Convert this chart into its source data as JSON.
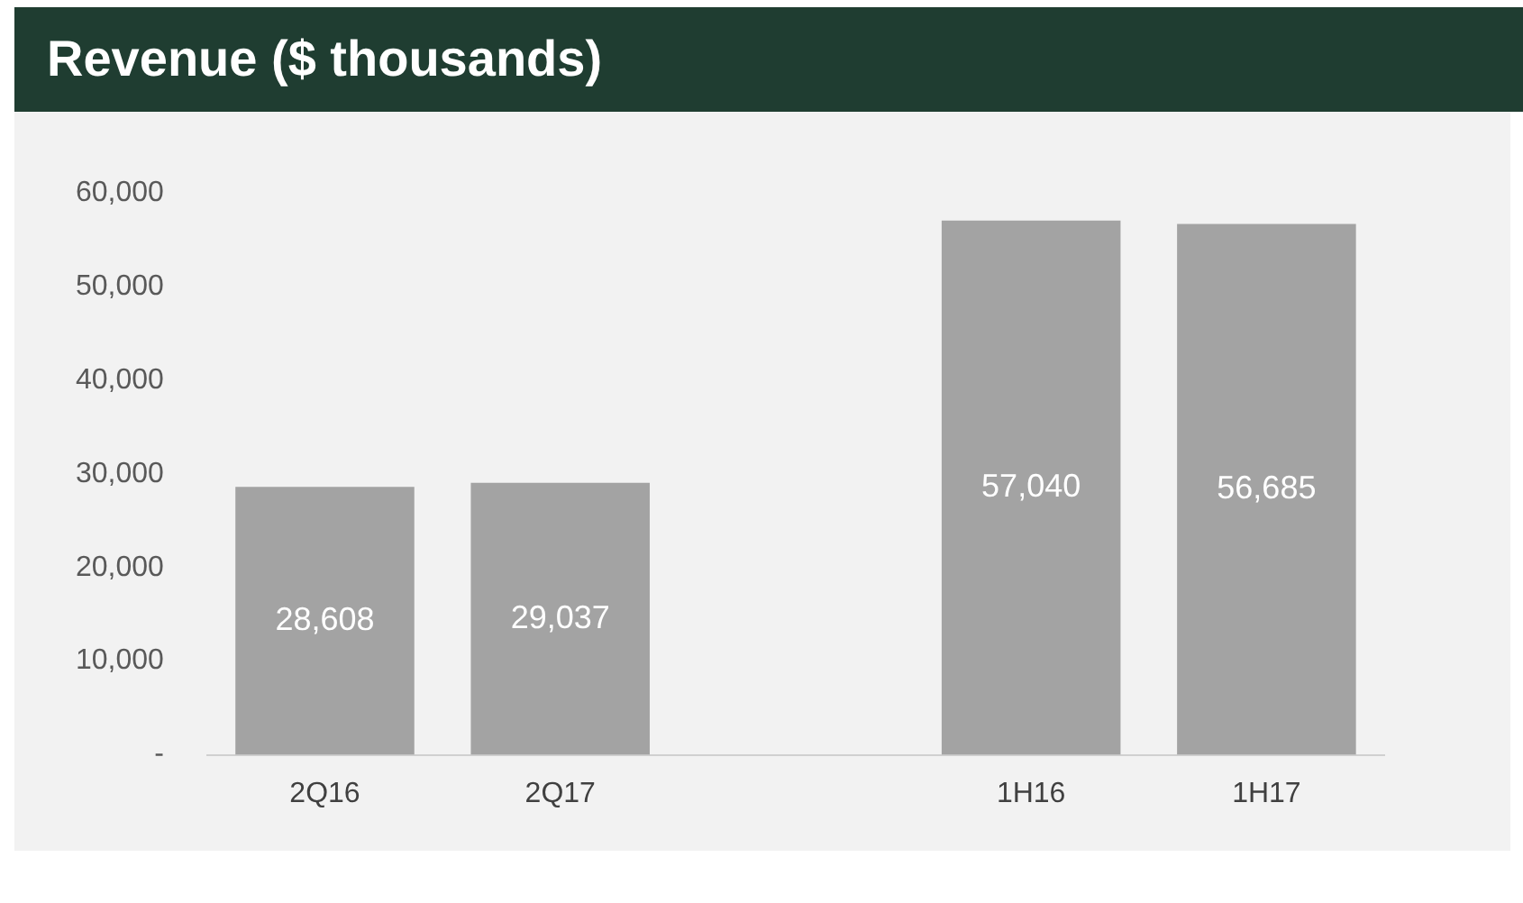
{
  "chart_data": {
    "type": "bar",
    "title": "Revenue ($ thousands)",
    "categories": [
      "2Q16",
      "2Q17",
      null,
      "1H16",
      "1H17"
    ],
    "values": [
      28608,
      29037,
      null,
      57040,
      56685
    ],
    "color": "#a3a3a3",
    "ylim": [
      0,
      60000
    ],
    "yticks": [
      {
        "value": 0,
        "label": "-"
      },
      {
        "value": 10000,
        "label": "10,000"
      },
      {
        "value": 20000,
        "label": "20,000"
      },
      {
        "value": 30000,
        "label": "30,000"
      },
      {
        "value": 40000,
        "label": "40,000"
      },
      {
        "value": 50000,
        "label": "50,000"
      },
      {
        "value": 60000,
        "label": "60,000"
      }
    ],
    "value_labels": [
      "28,608",
      "29,037",
      null,
      "57,040",
      "56,685"
    ]
  }
}
